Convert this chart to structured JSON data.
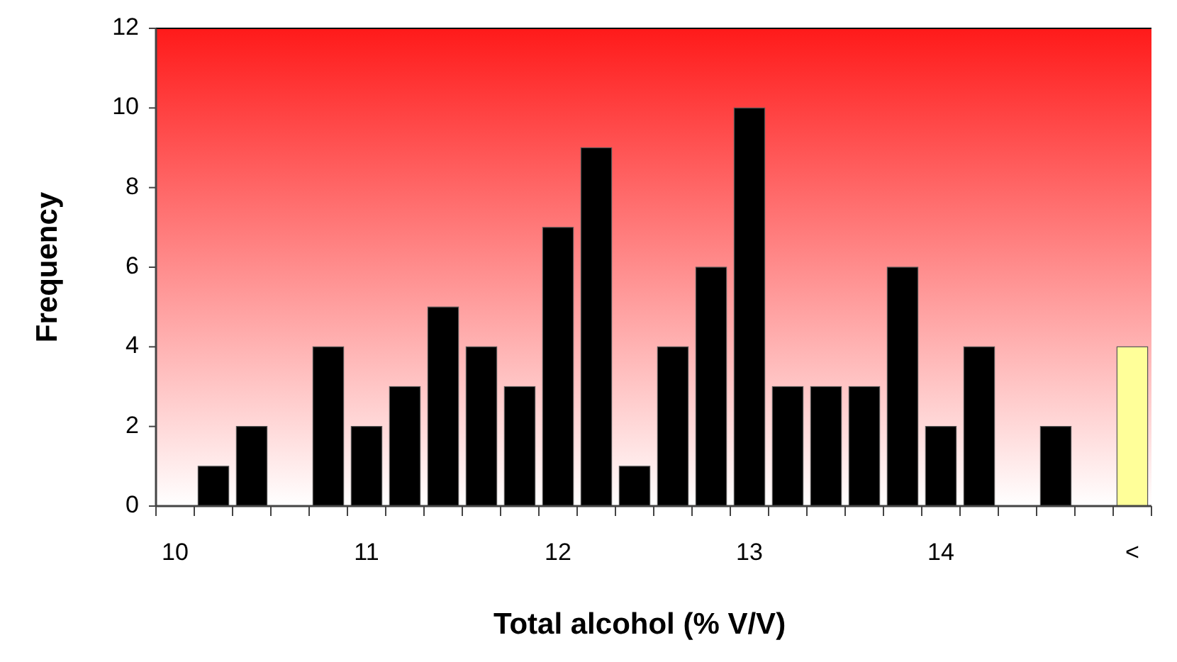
{
  "chart_data": {
    "type": "bar",
    "xlabel": "Total alcohol (% V/V)",
    "ylabel": "Frequency",
    "categories": [
      "10",
      null,
      null,
      null,
      null,
      "11",
      null,
      null,
      null,
      null,
      "12",
      null,
      null,
      null,
      null,
      "13",
      null,
      null,
      null,
      null,
      "14",
      null,
      null,
      null,
      null,
      "<"
    ],
    "values": [
      0,
      1,
      2,
      0,
      4,
      2,
      3,
      5,
      4,
      3,
      7,
      9,
      1,
      4,
      6,
      10,
      3,
      3,
      3,
      6,
      2,
      4,
      0,
      2,
      0,
      4
    ],
    "colors": [
      "#000000",
      "#000000",
      "#000000",
      "#000000",
      "#000000",
      "#000000",
      "#000000",
      "#000000",
      "#000000",
      "#000000",
      "#000000",
      "#000000",
      "#000000",
      "#000000",
      "#000000",
      "#000000",
      "#000000",
      "#000000",
      "#000000",
      "#000000",
      "#000000",
      "#000000",
      "#000000",
      "#000000",
      "#000000",
      "#ffff99"
    ],
    "ylim": [
      0,
      12
    ],
    "yticks": [
      0,
      2,
      4,
      6,
      8,
      10,
      12
    ],
    "grid": false
  }
}
